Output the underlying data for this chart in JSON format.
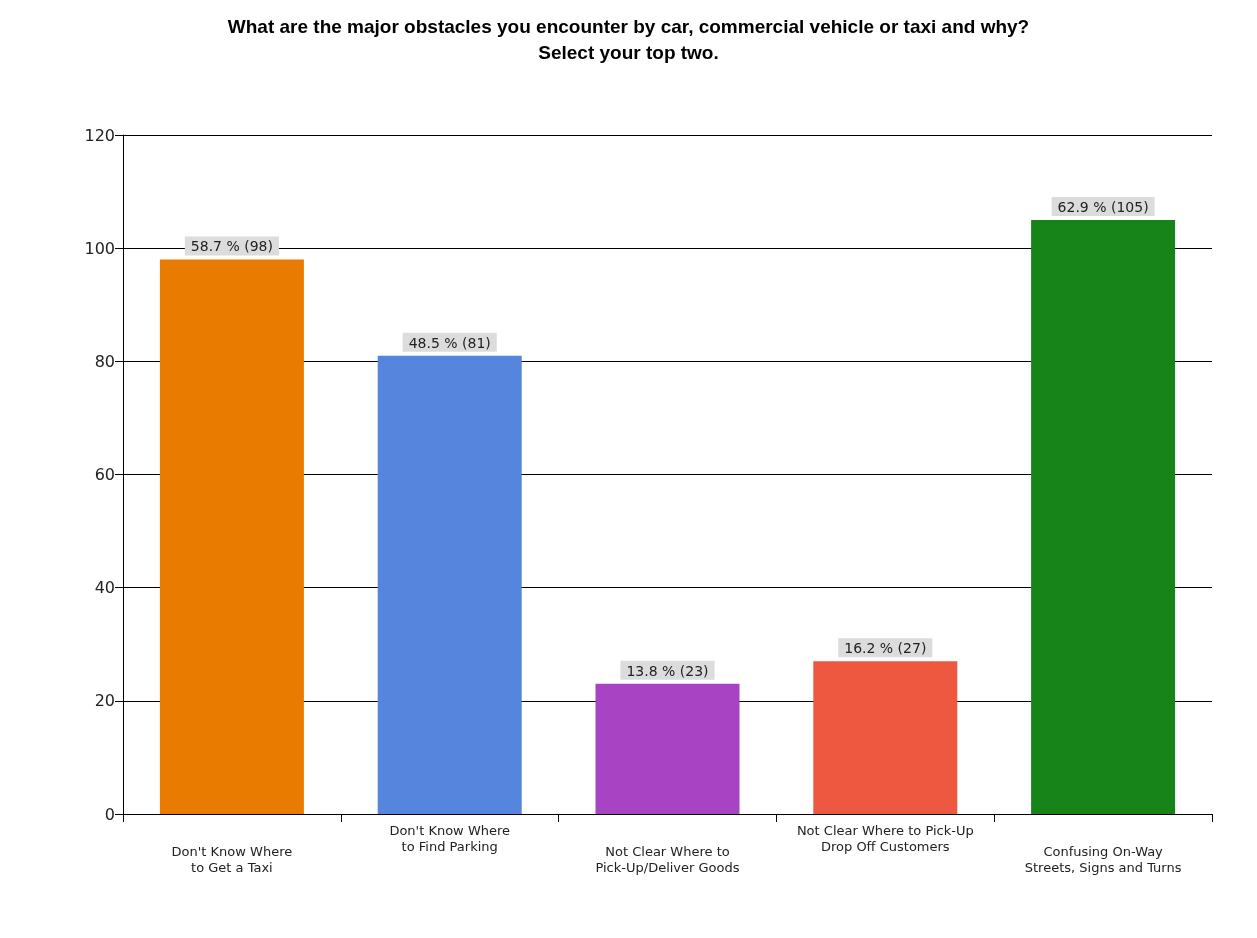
{
  "chart_data": {
    "type": "bar",
    "title": "What are the major obstacles you encounter by car, commercial vehicle or taxi and why?\nSelect your top two.",
    "categories": [
      "Don't Know Where\nto Get a Taxi",
      "Don't Know Where\nto Find Parking",
      "Not Clear Where to\nPick-Up/Deliver Goods",
      "Not Clear Where to Pick-Up\nDrop Off Customers",
      "Confusing On-Way\nStreets, Signs and Turns"
    ],
    "values": [
      98,
      81,
      23,
      27,
      105
    ],
    "colors": [
      "#e97c00",
      "#5585dd",
      "#a843c4",
      "#ee5840",
      "#17841a"
    ],
    "value_labels": [
      "58.7 % (98)",
      "48.5 % (81)",
      "13.8 % (23)",
      "16.2 % (27)",
      "62.9 % (105)"
    ],
    "ylim": [
      0,
      120
    ],
    "yticks": [
      0,
      20,
      40,
      60,
      80,
      100,
      120
    ],
    "grid": "y"
  }
}
